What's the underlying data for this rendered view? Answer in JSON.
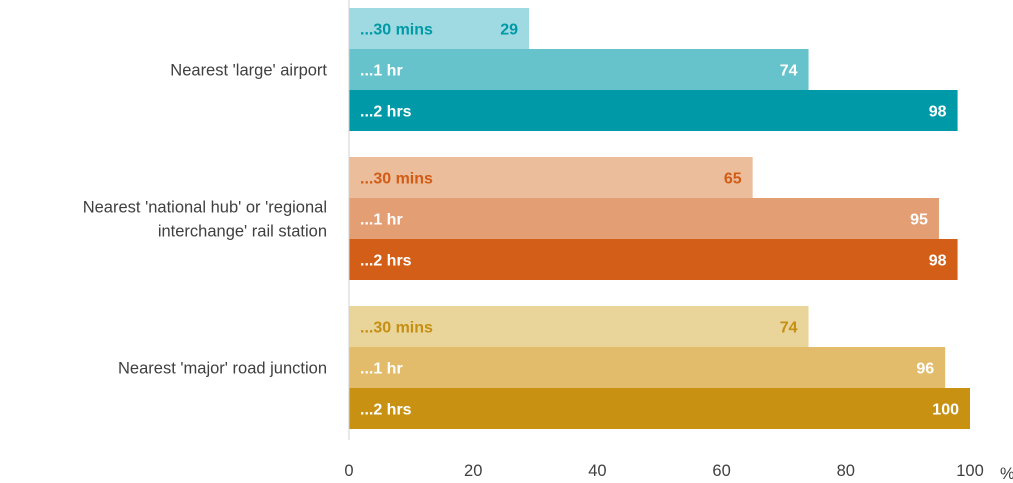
{
  "chart_data": {
    "type": "bar",
    "orientation": "horizontal",
    "title": "",
    "xlabel": "",
    "ylabel": "",
    "unit_label": "%",
    "xlim": [
      0,
      100
    ],
    "x_ticks": [
      0,
      20,
      40,
      60,
      80,
      100
    ],
    "grid": false,
    "legend": "none",
    "groups": [
      {
        "category": "Nearest 'large' airport",
        "category_lines": [
          "Nearest 'large' airport"
        ],
        "bars": [
          {
            "label": "...30 mins",
            "value": 29,
            "color": "#9fd9e2",
            "text_color": "#009aa6"
          },
          {
            "label": "...1 hr",
            "value": 74,
            "color": "#66c3cc",
            "text_color": "#ffffff"
          },
          {
            "label": "...2 hrs",
            "value": 98,
            "color": "#0099a8",
            "text_color": "#ffffff"
          }
        ]
      },
      {
        "category": "Nearest 'national hub' or 'regional interchange' rail station",
        "category_lines": [
          "Nearest 'national hub' or 'regional",
          "interchange' rail station"
        ],
        "bars": [
          {
            "label": "...30 mins",
            "value": 65,
            "color": "#ebbd9b",
            "text_color": "#d25c16"
          },
          {
            "label": "...1 hr",
            "value": 95,
            "color": "#e39e74",
            "text_color": "#ffffff"
          },
          {
            "label": "...2 hrs",
            "value": 98,
            "color": "#d35e17",
            "text_color": "#ffffff"
          }
        ]
      },
      {
        "category": "Nearest 'major' road junction",
        "category_lines": [
          "Nearest 'major' road junction"
        ],
        "bars": [
          {
            "label": "...30 mins",
            "value": 74,
            "color": "#e9d49a",
            "text_color": "#c58f12"
          },
          {
            "label": "...1 hr",
            "value": 96,
            "color": "#e2bc6a",
            "text_color": "#ffffff"
          },
          {
            "label": "...2 hrs",
            "value": 100,
            "color": "#c89112",
            "text_color": "#ffffff"
          }
        ]
      }
    ]
  }
}
